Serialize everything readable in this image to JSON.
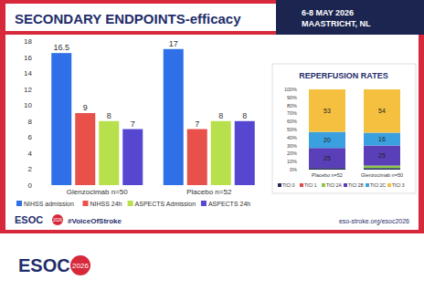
{
  "page": {
    "title": "SECONDARY ENDPOINTS-efficacy",
    "date": "6-8 MAY 2026",
    "location": "MAASTRICHT, NL",
    "slide_logo": "ESOC",
    "slide_logo_year": "2026",
    "hashtag": "#VoiceOfStroke",
    "url": "eso-stroke.org/esoc2026",
    "footer_logo": "ESOC",
    "footer_logo_year": "2026"
  },
  "chart_data": [
    {
      "type": "bar",
      "categories": [
        "Glenzocimab n=50",
        "Placebo n=52"
      ],
      "series": [
        {
          "name": "NIHSS admission",
          "color": "#2f6fe8",
          "values": [
            16.5,
            17
          ]
        },
        {
          "name": "NIHSS 24h",
          "color": "#e8504a",
          "values": [
            9,
            7
          ]
        },
        {
          "name": "ASPECTS Admission",
          "color": "#b8e04c",
          "values": [
            8,
            8
          ]
        },
        {
          "name": "ASPECTS 24h",
          "color": "#5547d0",
          "values": [
            7,
            8
          ]
        }
      ],
      "ylim": [
        0,
        18
      ],
      "yticks": [
        0,
        2,
        4,
        6,
        8,
        10,
        12,
        14,
        16,
        18
      ],
      "grid": false,
      "legend": "bottom",
      "data_labels": true
    },
    {
      "type": "bar",
      "title": "REPERFUSION RATES",
      "stacked": true,
      "categories": [
        "Placebo n=52",
        "Glenzocimab n=50"
      ],
      "series": [
        {
          "name": "TICI 0",
          "color": "#1f2a5a",
          "values": [
            2,
            2
          ],
          "value_labels": [
            null,
            null
          ]
        },
        {
          "name": "TICI 1",
          "color": "#e04848",
          "values": [
            0,
            0
          ],
          "value_labels": [
            null,
            null
          ]
        },
        {
          "name": "TICI 2A",
          "color": "#8cc84a",
          "values": [
            0,
            3
          ],
          "value_labels": [
            null,
            null
          ]
        },
        {
          "name": "TICI 2B",
          "color": "#5a3fb8",
          "values": [
            25,
            25
          ],
          "value_labels": [
            "25",
            "25"
          ]
        },
        {
          "name": "TICI 2C",
          "color": "#3aa0e0",
          "values": [
            20,
            16
          ],
          "value_labels": [
            "20",
            "16"
          ]
        },
        {
          "name": "TICI 3",
          "color": "#f5c040",
          "values": [
            53,
            54
          ],
          "value_labels": [
            "53",
            "54"
          ]
        }
      ],
      "ylim": [
        0,
        100
      ],
      "yticks": [
        {
          "value": 0,
          "label": "0%"
        },
        {
          "value": 10,
          "label": "10%"
        },
        {
          "value": 20,
          "label": "20%"
        },
        {
          "value": 30,
          "label": "30%"
        },
        {
          "value": 40,
          "label": "40%"
        },
        {
          "value": 50,
          "label": "50%"
        },
        {
          "value": 60,
          "label": "60%"
        },
        {
          "value": 70,
          "label": "70%"
        },
        {
          "value": 80,
          "label": "80%"
        },
        {
          "value": 90,
          "label": "90%"
        },
        {
          "value": 100,
          "label": "100%"
        }
      ],
      "grid": false,
      "legend": "bottom",
      "data_labels": true
    }
  ]
}
